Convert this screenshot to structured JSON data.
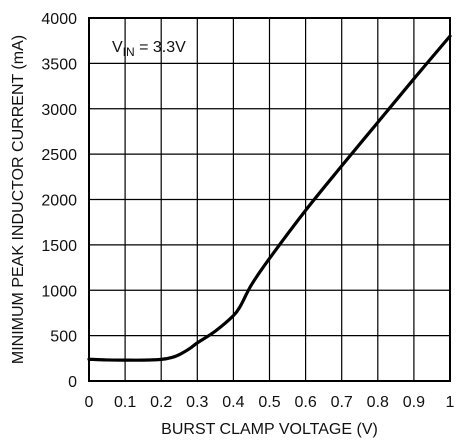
{
  "chart_data": {
    "type": "line",
    "title": "",
    "xlabel": "BURST CLAMP VOLTAGE (V)",
    "ylabel": "MINIMUM PEAK INDUCTOR CURRENT (mA)",
    "xlim": [
      0,
      1
    ],
    "ylim": [
      0,
      4000
    ],
    "xticks": [
      0,
      0.1,
      0.2,
      0.3,
      0.4,
      0.5,
      0.6,
      0.7,
      0.8,
      0.9,
      1
    ],
    "yticks": [
      0,
      500,
      1000,
      1500,
      2000,
      2500,
      3000,
      3500,
      4000
    ],
    "xtick_labels": [
      "0",
      "0.1",
      "0.2",
      "0.3",
      "0.4",
      "0.5",
      "0.6",
      "0.7",
      "0.8",
      "0.9",
      "1"
    ],
    "ytick_labels": [
      "0",
      "500",
      "1000",
      "1500",
      "2000",
      "2500",
      "3000",
      "3500",
      "4000"
    ],
    "grid": true,
    "annotation": {
      "main": "V",
      "subscript": "IN",
      "suffix": " = 3.3V"
    },
    "series": [
      {
        "x": [
          0,
          0.05,
          0.1,
          0.15,
          0.2,
          0.23,
          0.25,
          0.28,
          0.3,
          0.35,
          0.4,
          0.42,
          0.45,
          0.5,
          0.6,
          0.7,
          0.8,
          0.9,
          1.0
        ],
        "y": [
          240,
          232,
          230,
          230,
          238,
          260,
          290,
          360,
          420,
          550,
          720,
          830,
          1060,
          1350,
          1880,
          2370,
          2850,
          3330,
          3800
        ]
      }
    ],
    "line_color": "#000000"
  }
}
